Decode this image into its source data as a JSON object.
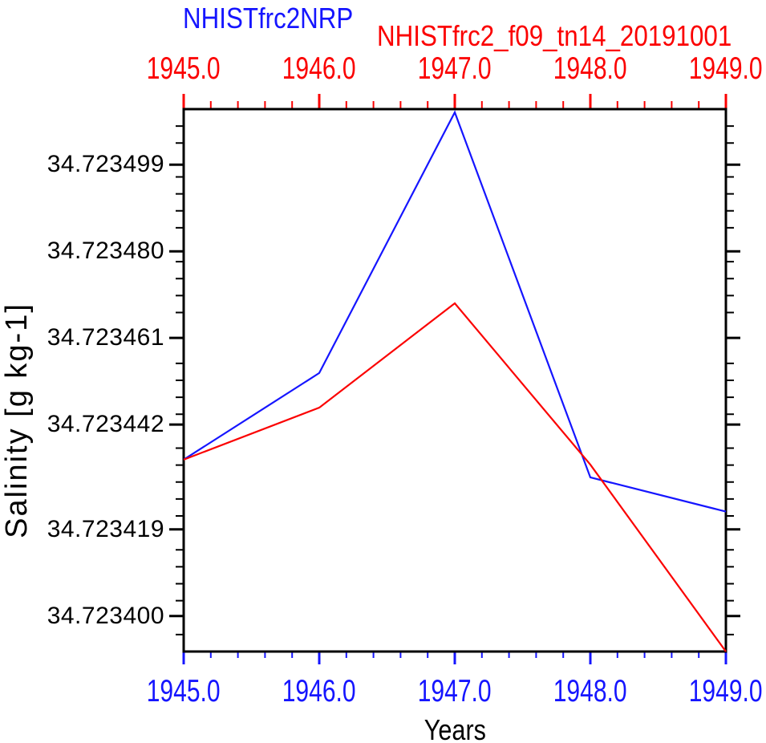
{
  "chart_data": {
    "type": "line",
    "title_left": {
      "text": "NHISTfrc2NRP",
      "color": "#1515ff"
    },
    "title_right": {
      "text": "NHISTfrc2_f09_tn14_20191001",
      "color": "#fb0000"
    },
    "xlabel": "Years",
    "ylabel": "Salinity [g kg-1]",
    "x": [
      1945,
      1946,
      1947,
      1948,
      1949
    ],
    "x_tick_labels": [
      "1945.0",
      "1946.0",
      "1947.0",
      "1948.0",
      "1949.0"
    ],
    "xlim": [
      1945,
      1949
    ],
    "x_minor_divisions": 5,
    "ylim": [
      34.7233922,
      34.7235112
    ],
    "y_major_ticks": [
      34.723499,
      34.72348,
      34.723461,
      34.723442,
      34.723419,
      34.7234
    ],
    "y_tick_labels": [
      "34.723499",
      "34.723480",
      "34.723461",
      "34.723442",
      "34.723419",
      "34.723400"
    ],
    "y_minor_intervals": 32,
    "grid": false,
    "legend_position": "titles above plot act as legend",
    "axis_colors": {
      "top": "#fb0000",
      "bottom": "#1515ff",
      "left": "#000000",
      "right": "#000000"
    },
    "series": [
      {
        "name": "NHISTfrc2NRP",
        "color": "#1515ff",
        "values": [
          34.7234343,
          34.7234533,
          34.7235105,
          34.7234304,
          34.7234229
        ]
      },
      {
        "name": "NHISTfrc2_f09_tn14_20191001",
        "color": "#fb0000",
        "values": [
          34.7234343,
          34.7234457,
          34.7234686,
          34.7234332,
          34.7233922
        ]
      }
    ]
  }
}
